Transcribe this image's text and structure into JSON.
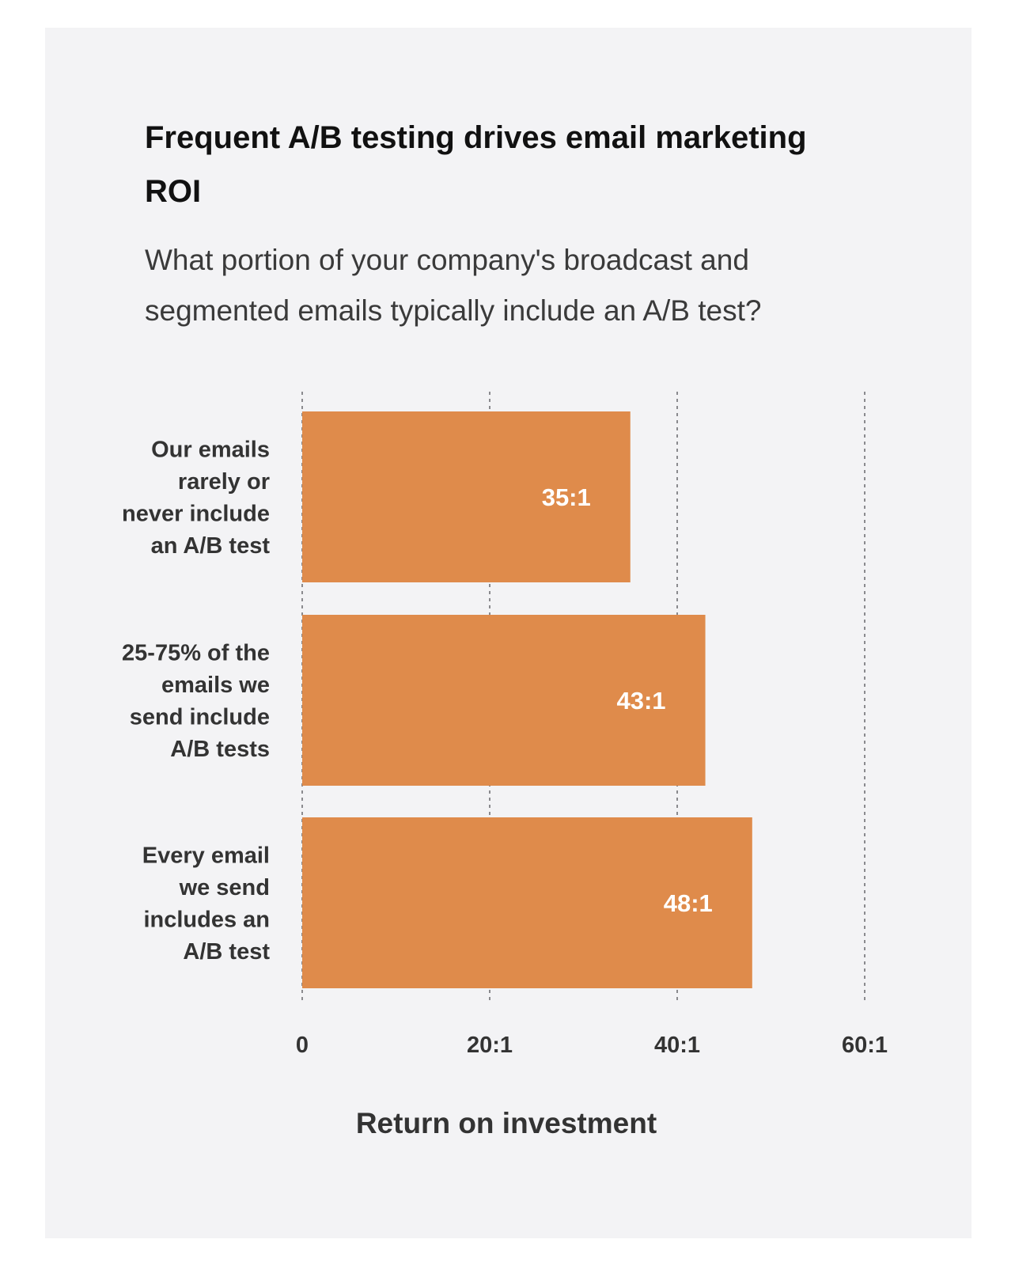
{
  "chart_data": {
    "type": "bar",
    "orientation": "horizontal",
    "title": "Frequent A/B testing drives email marketing ROI",
    "subtitle": "What portion of your company's broadcast and segmented emails typically include an A/B test?",
    "categories": [
      [
        "Our emails",
        "rarely or",
        "never include",
        "an A/B test"
      ],
      [
        "25-75% of the",
        "emails we",
        "send include",
        "A/B tests"
      ],
      [
        "Every email",
        "we send",
        "includes an",
        "A/B test"
      ]
    ],
    "values": [
      35,
      43,
      48
    ],
    "data_labels": [
      "35:1",
      "43:1",
      "48:1"
    ],
    "xlabel": "Return on investment",
    "xlim": [
      0,
      60
    ],
    "xticks": [
      0,
      20,
      40,
      60
    ],
    "xtick_labels": [
      "0",
      "20:1",
      "40:1",
      "60:1"
    ],
    "grid": "vertical dotted",
    "bar_color": "#df8b4b",
    "background_color": "#f3f3f5"
  }
}
